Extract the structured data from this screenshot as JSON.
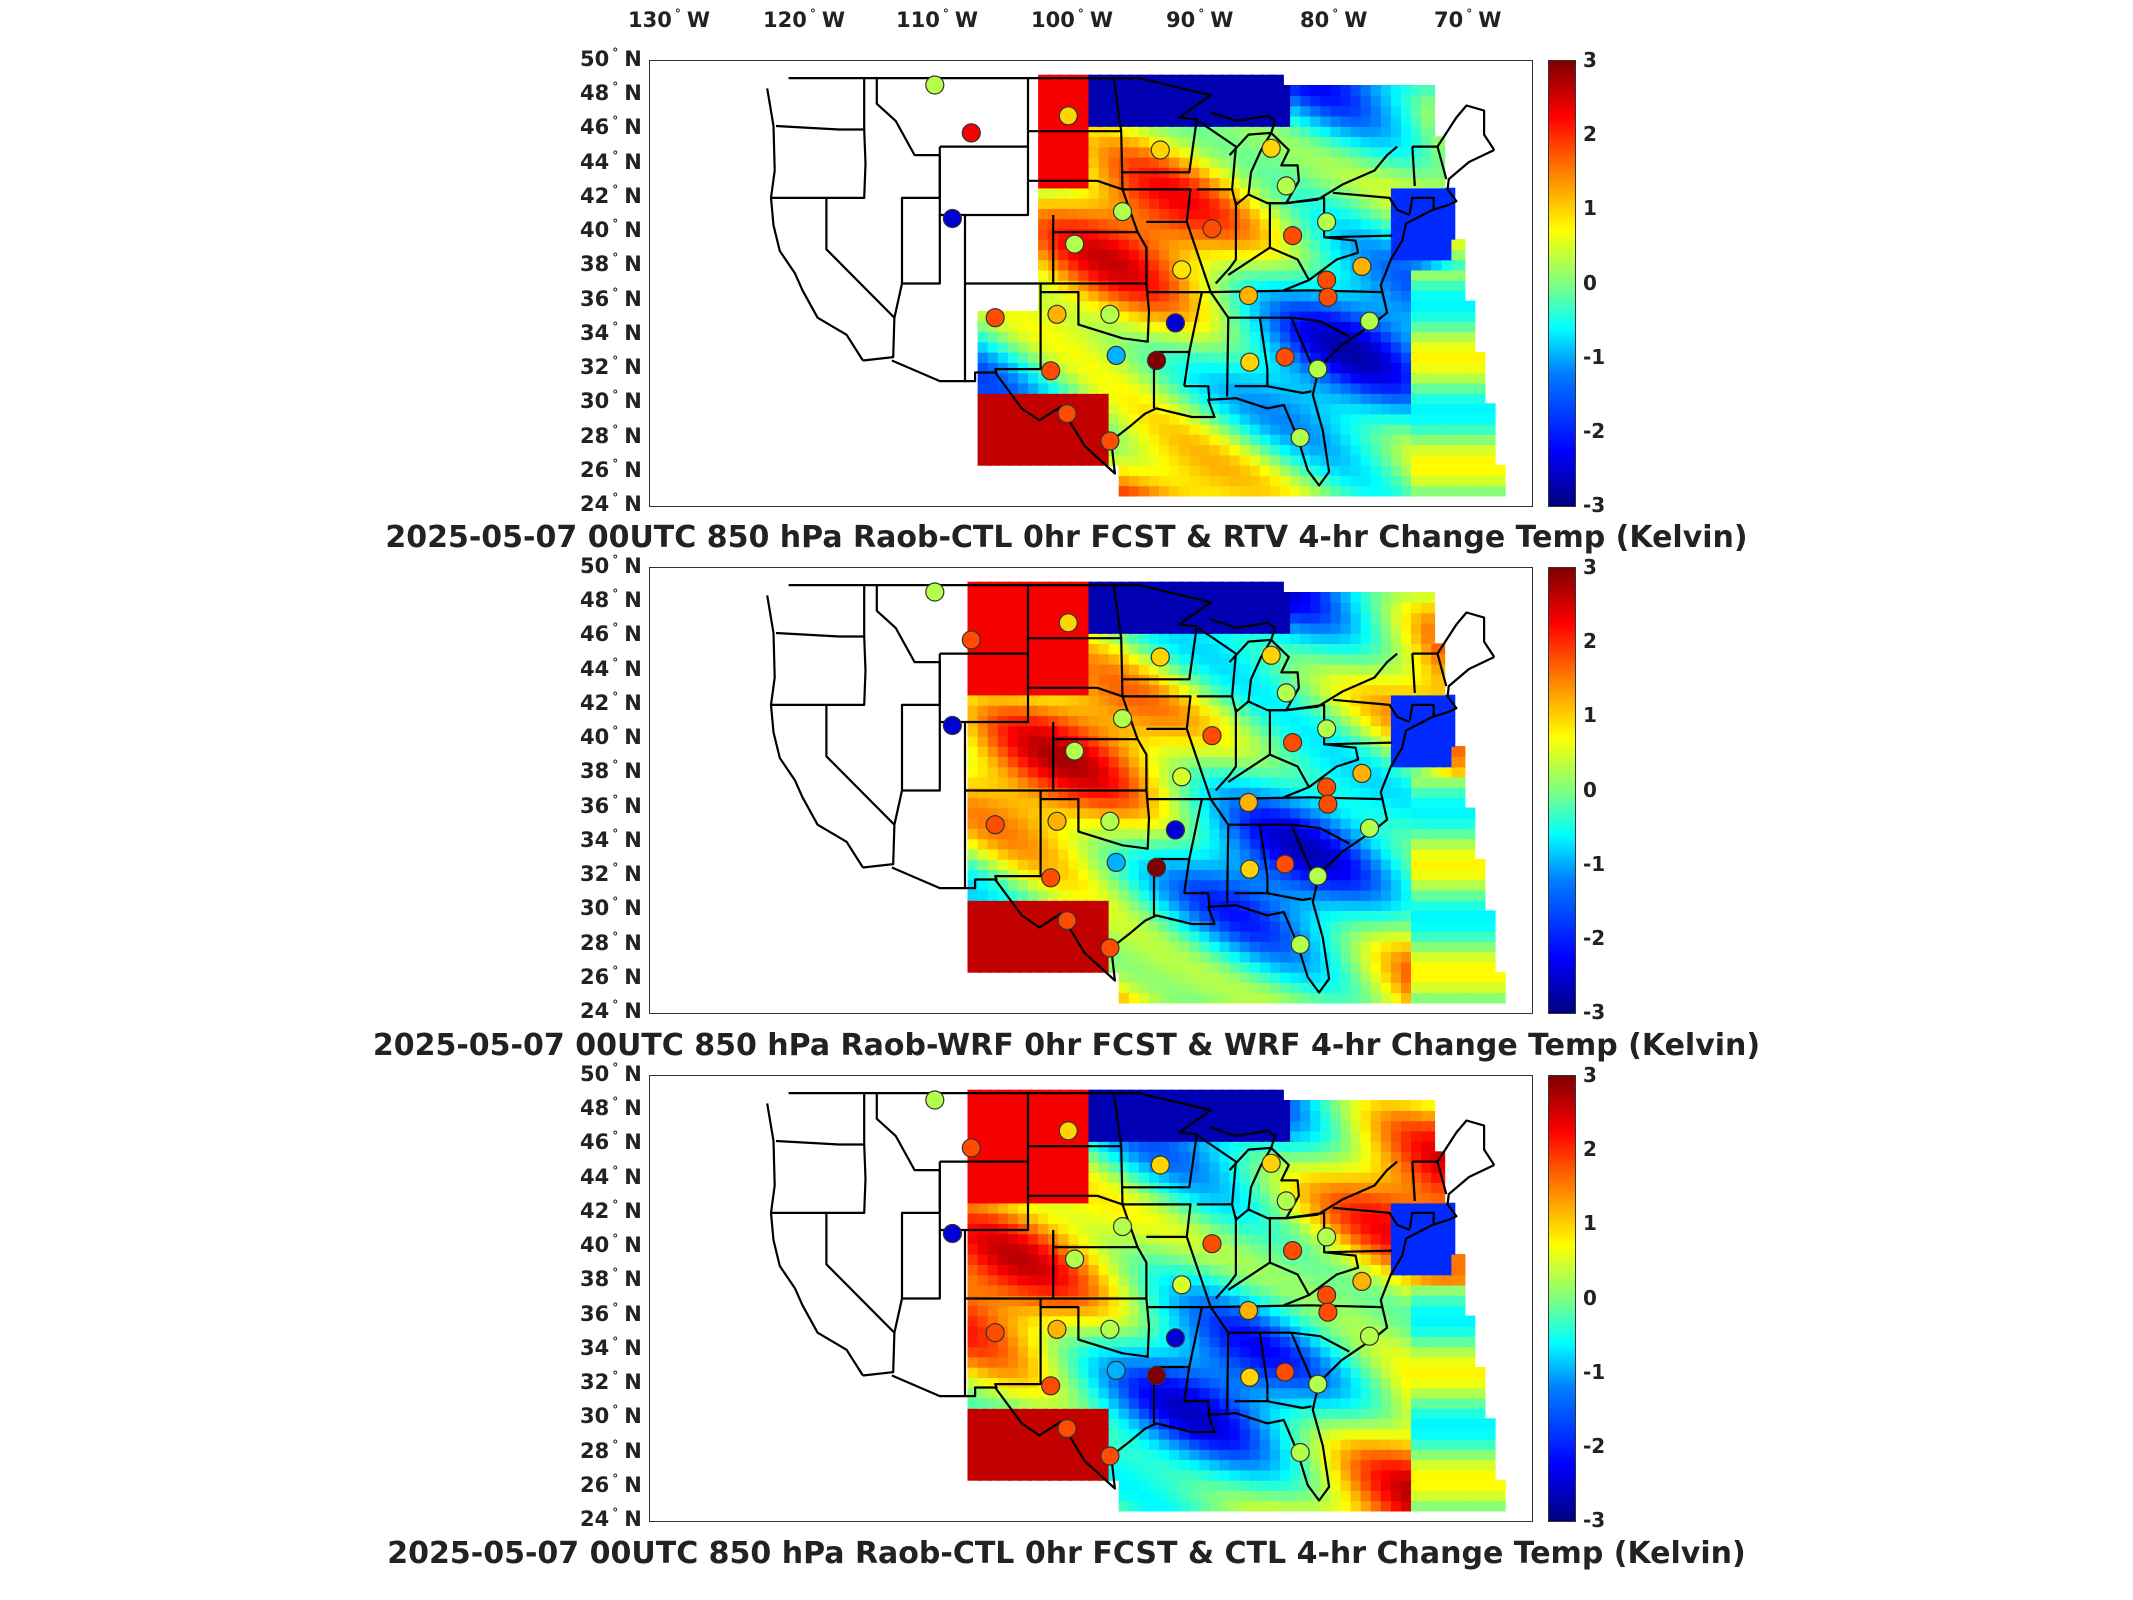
{
  "longitude_labels": [
    "130",
    "120",
    "110",
    "100",
    "90",
    "80",
    "70"
  ],
  "longitude_suffix": "W",
  "latitude_labels": [
    "50",
    "48",
    "46",
    "44",
    "42",
    "40",
    "38",
    "36",
    "34",
    "32",
    "30",
    "28",
    "26",
    "24"
  ],
  "latitude_suffix": "N",
  "degree_symbol": "°",
  "colorbar_ticks": [
    "3",
    "2",
    "1",
    "0",
    "-1",
    "-2",
    "-3"
  ],
  "colormap": [
    "#00007f",
    "#0000ff",
    "#007fff",
    "#00ffff",
    "#7fff7f",
    "#ffff00",
    "#ff7f00",
    "#ff0000",
    "#7f0000"
  ],
  "panels": [
    {
      "title": "2025-05-07 00UTC 850 hPa Raob-CTL 0hr FCST & RTV 4-hr Change Temp (Kelvin)"
    },
    {
      "title": "2025-05-07 00UTC 850 hPa Raob-WRF 0hr FCST & WRF 4-hr Change Temp (Kelvin)"
    },
    {
      "title": "2025-05-07 00UTC 850 hPa Raob-CTL 0hr FCST & CTL 4-hr Change Temp (Kelvin)"
    }
  ],
  "raob_stations": [
    {
      "lon": -111.4,
      "lat": 48.6,
      "value": [
        0.3,
        0.3,
        0.3
      ]
    },
    {
      "lon": -100.8,
      "lat": 46.8,
      "value": [
        1.0,
        1.0,
        1.0
      ]
    },
    {
      "lon": -108.5,
      "lat": 45.8,
      "value": [
        2.3,
        1.8,
        1.8
      ]
    },
    {
      "lon": -93.5,
      "lat": 44.8,
      "value": [
        1.0,
        1.0,
        1.0
      ]
    },
    {
      "lon": -84.7,
      "lat": 44.9,
      "value": [
        1.0,
        1.0,
        1.0
      ]
    },
    {
      "lon": -83.5,
      "lat": 42.7,
      "value": [
        0.3,
        0.3,
        0.3
      ]
    },
    {
      "lon": -110.0,
      "lat": 40.8,
      "value": [
        -2.5,
        -2.5,
        -2.5
      ]
    },
    {
      "lon": -96.5,
      "lat": 41.2,
      "value": [
        0.3,
        0.3,
        0.3
      ]
    },
    {
      "lon": -89.4,
      "lat": 40.2,
      "value": [
        1.8,
        1.8,
        1.8
      ]
    },
    {
      "lon": -83.0,
      "lat": 39.8,
      "value": [
        1.8,
        1.8,
        1.8
      ]
    },
    {
      "lon": -80.3,
      "lat": 40.6,
      "value": [
        0.3,
        0.3,
        0.3
      ]
    },
    {
      "lon": -100.3,
      "lat": 39.3,
      "value": [
        0.3,
        0.3,
        0.3
      ]
    },
    {
      "lon": -91.8,
      "lat": 37.8,
      "value": [
        0.9,
        0.5,
        0.5
      ]
    },
    {
      "lon": -77.5,
      "lat": 38.0,
      "value": [
        1.2,
        1.2,
        1.2
      ]
    },
    {
      "lon": -80.3,
      "lat": 37.2,
      "value": [
        1.8,
        1.8,
        1.8
      ]
    },
    {
      "lon": -86.5,
      "lat": 36.3,
      "value": [
        1.2,
        1.2,
        1.2
      ]
    },
    {
      "lon": -106.6,
      "lat": 35.0,
      "value": [
        1.8,
        1.8,
        1.8
      ]
    },
    {
      "lon": -101.7,
      "lat": 35.2,
      "value": [
        1.2,
        1.2,
        1.2
      ]
    },
    {
      "lon": -97.5,
      "lat": 35.2,
      "value": [
        0.3,
        0.3,
        0.3
      ]
    },
    {
      "lon": -92.3,
      "lat": 34.7,
      "value": [
        -2.5,
        -2.5,
        -2.5
      ]
    },
    {
      "lon": -80.2,
      "lat": 36.2,
      "value": [
        1.8,
        1.8,
        1.8
      ]
    },
    {
      "lon": -76.9,
      "lat": 34.8,
      "value": [
        0.3,
        0.3,
        0.3
      ]
    },
    {
      "lon": -97.0,
      "lat": 32.8,
      "value": [
        -1.2,
        -1.2,
        -1.2
      ]
    },
    {
      "lon": -102.2,
      "lat": 31.9,
      "value": [
        1.8,
        1.8,
        1.8
      ]
    },
    {
      "lon": -93.8,
      "lat": 32.5,
      "value": [
        3.0,
        3.0,
        3.0
      ]
    },
    {
      "lon": -86.4,
      "lat": 32.4,
      "value": [
        1.0,
        1.0,
        1.0
      ]
    },
    {
      "lon": -83.6,
      "lat": 32.7,
      "value": [
        1.8,
        1.8,
        1.8
      ]
    },
    {
      "lon": -81.0,
      "lat": 32.0,
      "value": [
        0.3,
        0.3,
        0.3
      ]
    },
    {
      "lon": -100.9,
      "lat": 29.4,
      "value": [
        1.8,
        1.8,
        1.8
      ]
    },
    {
      "lon": -97.5,
      "lat": 27.8,
      "value": [
        1.8,
        1.8,
        1.8
      ]
    },
    {
      "lon": -82.4,
      "lat": 28.0,
      "value": [
        0.3,
        0.3,
        0.3
      ]
    }
  ]
}
